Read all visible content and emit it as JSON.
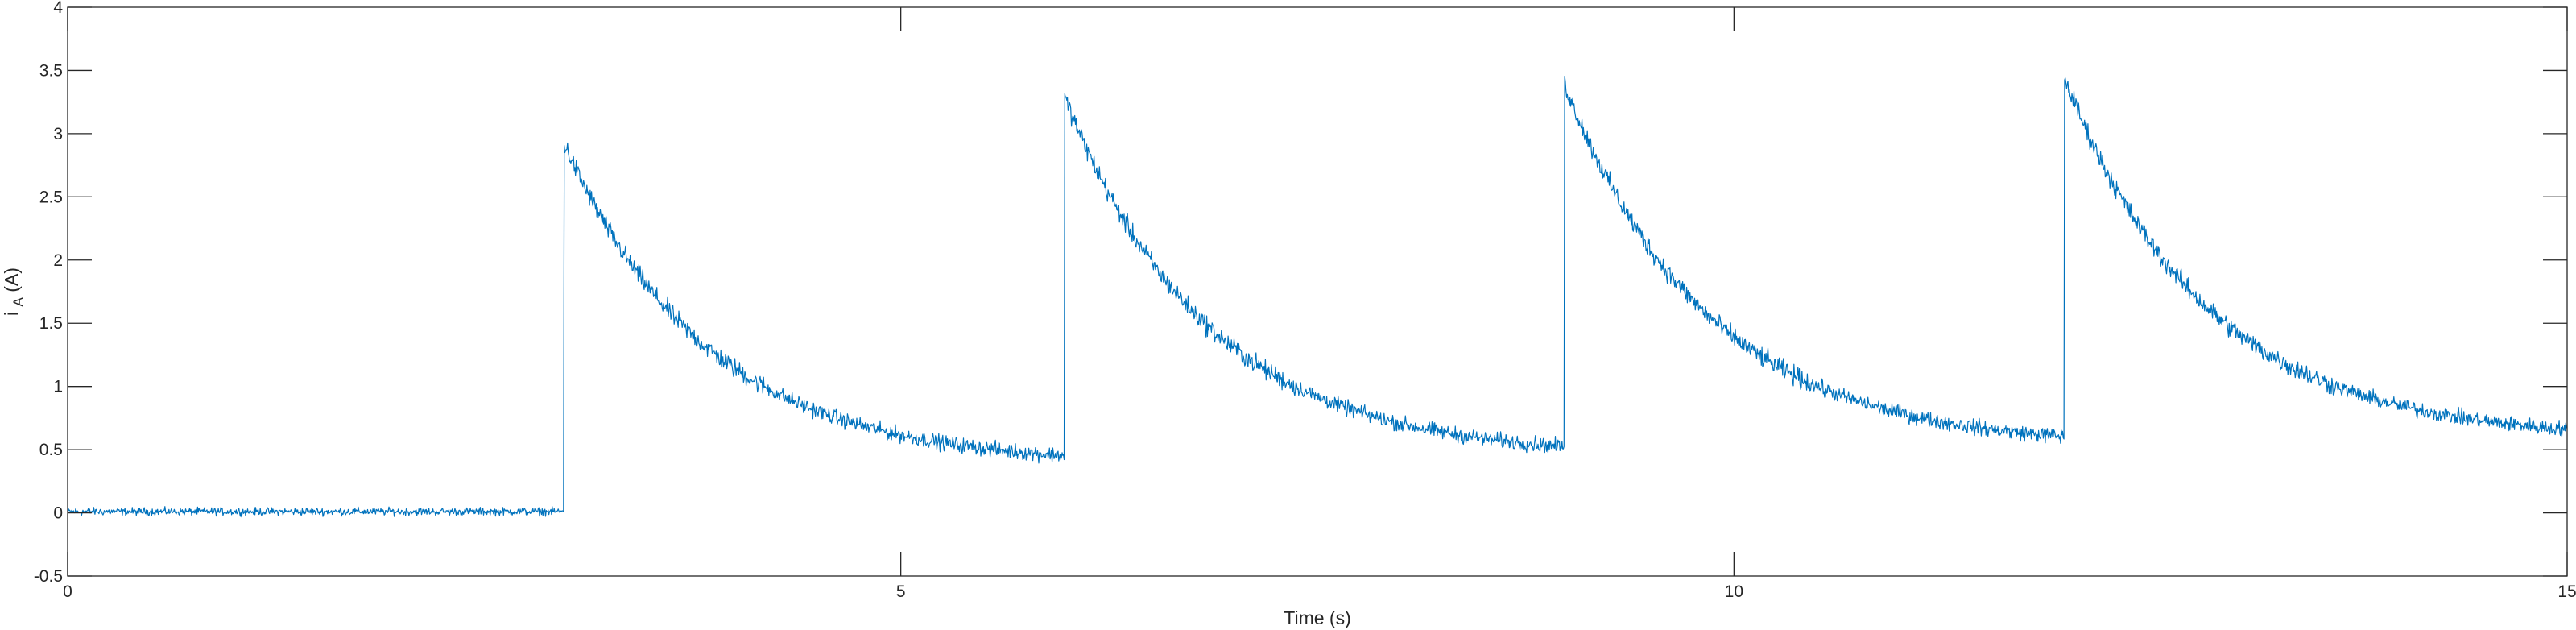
{
  "chart_data": {
    "type": "line",
    "title": "",
    "xlabel": "Time (s)",
    "ylabel": "i",
    "ylabel_subscript": "A",
    "ylabel_unit": " (A)",
    "xlim": [
      0,
      15
    ],
    "ylim": [
      -0.5,
      4
    ],
    "xticks": [
      0,
      5,
      10,
      15
    ],
    "xtick_labels": [
      "0",
      "5",
      "10",
      "15"
    ],
    "yticks": [
      -0.5,
      0,
      0.5,
      1,
      1.5,
      2,
      2.5,
      3,
      3.5,
      4
    ],
    "ytick_labels": [
      "-0.5",
      "0",
      "0.5",
      "1",
      "1.5",
      "2",
      "2.5",
      "3",
      "3.5",
      "4"
    ],
    "grid": false,
    "box": true,
    "series": [
      {
        "color": "#0072BD",
        "noise_amplitude": 0.06,
        "baseline": [
          {
            "x": 0,
            "y": 0.01
          },
          {
            "x": 2.98,
            "y": 0.01
          }
        ],
        "pulses": [
          {
            "t_start": 2.98,
            "t_end": 5.98,
            "peak": 2.92,
            "floor": 0.38
          },
          {
            "t_start": 5.98,
            "t_end": 8.98,
            "peak": 3.3,
            "floor": 0.44
          },
          {
            "t_start": 8.98,
            "t_end": 11.98,
            "peak": 3.4,
            "floor": 0.52
          },
          {
            "t_start": 11.98,
            "t_end": 15.0,
            "peak": 3.45,
            "floor": 0.58
          }
        ],
        "decay_time_constant": 0.85
      }
    ]
  }
}
